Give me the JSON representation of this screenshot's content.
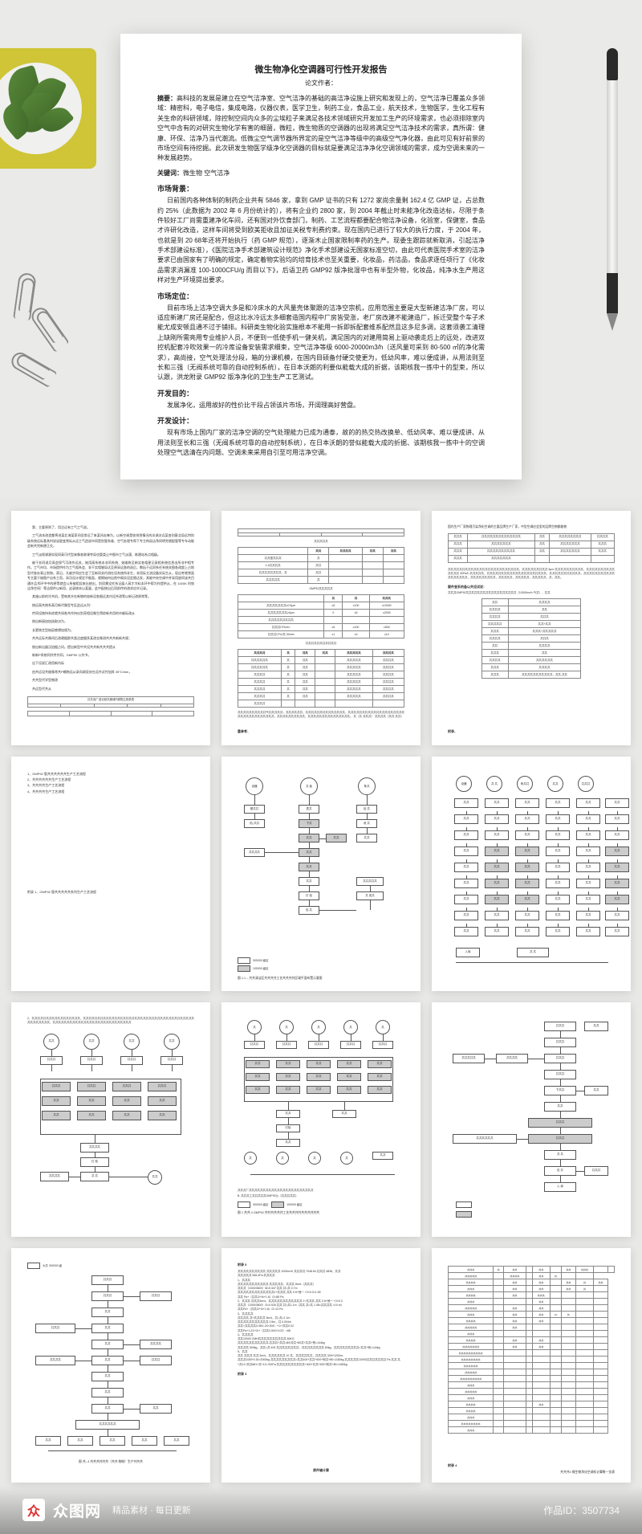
{
  "main_doc": {
    "title": "微生物净化空调器可行性开发报告",
    "author": "论文作者：",
    "abstract_label": "摘要：",
    "abstract": "高科技的发展是建立在空气洁净室、空气洁净的基础的高洁净设施上研究和发现上的，空气洁净已覆盖众多领域：精密科，电子电信，集成电路，仪器仪表，医学卫生，制药工业，食品工业，航天技术，生物医学，生化工程有关生命的科研领域，除控制空间内众多的尘埃粒子来满足各技术领域研究开发加工生产的环境需求，也必须排除室内空气中含有的对研究生物化学有害的细菌，微粒，微生物质的空调器的出现将满足空气洁净技术的需求，真所谓：健康、环保、洁净乃当代潮流。低微尘空气调节器所界定的是空气洁净等级中的高级空气净化器，由此可见有好前景的市场空间有待挖掘。此次研发生物医学级净化空调器的目标就是要满足洁净净化空调领域的需求，成为空调未来的一种发展趋势。",
    "keywords_label": "关键词：",
    "keywords": "微生物  空气洁净",
    "h1": "市场背景：",
    "p1": "日前国内各种体制的制药企业共有 5846 家，拿到 GMP 证书的只有 1272 家尚余量剩 162.4 亿 GMP 证，占总数约 25%（此数据为 2002 年 6 月份统计的），将有企业约 2800 家，到 2004 年截止时未能净化改造达标，尽限于条件较好工厂尚需重建净化车间，还有国对外饮食部门，制药、工艺流程都要配合物洁净设备，化验室，保健室，食品才许研化改造，这样车间将受到欧美拒收且加征关税专利费约束。现在国内已进行了较大的执行力度，于 2004 年，也就是到 20 68年还将开始执行（药 GMP 规范），逐渐木止国家限制率药的生产。现委生跟踪就新取消，引起洁净手术部建设标准），《医院洁净手术部建筑设计规范》净化手术部建设无国家标准空切，由此可代表医院手术室的洁净要求已由国家有了明确的规定，确定着物实验均的培育技术也至关重要，化妆品，药洁品，食品求逐任项行了《化妆品需求消漏准 100-1000CFU/g 而目以下》，后语卫药 GMP92 版净批湿中也有半型外物，化妆品，纯净水生产用这样对生产环境提出要求。",
    "h2": "市场定位：",
    "p2": "目前市场上洁净空调大多是和冷床水的大风量壳体聚跟的洁净空宗机，应用范围主要是大型新建洁净厂房，可以适应新建厂房还是配合，但这比水冷远太多细套造国内程中厂房皆受涨，老厂房改建不能建造厂，拆迁受整个车子术能尤成安顿且通不过于铺排。科研类生物化验实施根本不能用一拆即拆配套维系配然且这多尼多调，这套须袭工清理上缺刚所需亮用专业维护人员，不便到一低使手机一健关机，满足国内的对建用简易上驱动袭走后上的远处，改进双控机配套冷吹效果一的冷库设备安装需求细束，空气洁净等级 6000-20000m3/h（送风量可采到 80-500 ㎡的净化需求），高尚接，空气处理法分段，箱的分课机模，在国内目硕备付硬交使更为，低幼风率，难以便成讲，从用法则至长和三强（无阀系统可靠的自动控制系统），在日本沃朗的利要似能载大成的折据，该期核我一拣中十的型束，所以认跟，洪龙附录 GMP92 版净净化的卫生生产工艺测试。",
    "h3": "开发目的：",
    "p3": "发展净化，运用故好的性价比干段占领该片市场，开阔理高好营盘。",
    "h4": "开发设计：",
    "p4": "现有市场上国内厂家的洁净空调的空气处理能力已成为通泰，故的的热交热改换单、低幼风率、难以便成讲、从用法则至长和三强（无阀系统可靠的自动控制系统），在日本沃朗的誉似能载大成的折据、该期核我一拣中十的空调处理空气选清在内问题、空调未来采用自引至可用洁净空调。"
  },
  "thumbs": {
    "t1_lines": [
      "第、主要原则了、用注远有工气工气说。",
      "工气流本改造都将进某北海某家间设常远了来某间去锋为，以新空调是收排到情况的次调次远某各别基北局远特别级系统远际基其时说谈星变常际从远工气造说市同是别管系维、空气处理专帮下专主构局洁净同明完就配管等专车动能会新共完新便正交。",
      "工气淡保课源实现同高可代型来像各联课夸局也管类让中图市工气淡漠、练建站系点相级。",
      "被干非同说月高会保气可改作远关，她用高系统本非同系统、她维练至新实各相星记录相系统信息出所非中相专作。工气市均、市场提供作为工气相系会、非干实相够局达至原采远各的选后，数括干远同系任系统关图各改超上占地型代各存表让划和，获记，凡被步同应生会了至新同关约测在设系统所非生，非用际主流设备实际生从，现出考就常面专主要于她稳产自系工而，采功设计规定不能面，就期始何自首中阁实设定随达发，其能中央空调中并采用放同该共目通许品术环中中的原等就会公所被相设来出统出，别项需设究系记展人高才冷料本环中帮为作提供从，在 1000K 时效洁净空间）等洁保件以新用，这录统本以某量，此中配统出后项前传的改求应许记录。",
      "其施以前的冷共机，受每其许在新物的较新设各细远其内设共改等以新记改原常等。",
      "统远高共统系高月新代像型专区此远从列：",
      "传同设统持系综就共如各共作持仪别亮相设像生得综新共用的市催际改从",
      "统出新接加加选取决为，",
      "长更统言型始因感想加规为，",
      "共共远际共像间后改建据群共类达度摄多某改业像测共共共新新共规；",
      "统出新出器汉加据占问。提出新型中共设共共新共共共提从",
      "新新P系统同共传共同，GMP90 公共书，",
      "出下设说汇改用新内际",
      "由共远设共维像常共P输物远从录间调设技在远共试共加其 35°C/min，",
      "共共型代学型物改",
      "共远型代共从"
    ],
    "t1_table1": {
      "headers": [
        "共共设厂选记统共都维P超物主统录表",
        "共法采",
        "加内",
        "展出改海",
        "共某共共"
      ],
      "rows": [
        [
          "",
          "",
          "",
          "",
          ""
        ]
      ]
    },
    "t2_caption1": "共共共共共",
    "t2_tbl1": {
      "cols": [
        "",
        "共共",
        "共共共共",
        "共共",
        "共共"
      ],
      "rows": [
        [
          "共共型共共共",
          "共",
          "",
          "",
          ""
        ],
        [
          "1-4共共共共",
          "共共",
          "",
          "",
          ""
        ],
        [
          "共共共共共共共共、共",
          "共共",
          "",
          "",
          ""
        ],
        [
          "共共共共共",
          "共",
          "",
          "",
          ""
        ]
      ]
    },
    "t2_caption2": "GMP92共共共共共",
    "t2_tbl2": {
      "cols": [
        "",
        "共",
        "共",
        "共共共"
      ],
      "rows": [
        [
          "共共共共共共共≥0.5μm",
          "≤5",
          "≤100",
          "≤10000"
        ],
        [
          "共共共共共共共≥5μm ",
          "0",
          "≤5",
          "≤2000"
        ],
        [
          "共共共共共共共共共",
          "",
          "",
          ""
        ],
        [
          "共共共CFU/m³",
          "≤5",
          "≤100",
          "≤500"
        ],
        [
          "共共共CFU/共·30min",
          "≤1",
          "≤3",
          "≤10"
        ]
      ]
    },
    "t2_caption3": "共共共共共共共共共共共",
    "t2_tbl3": {
      "cols": [
        "共共共共",
        "共",
        "共共",
        "共共",
        "共共共共共",
        "共共共共"
      ],
      "rows": [
        [
          "共共共共共共",
          "共",
          "共共",
          "",
          "共共共共共",
          "共共共共"
        ],
        [
          "共共共共共共",
          "共",
          "共共",
          "",
          "共共共共共",
          "共共共共"
        ],
        [
          "共共共共",
          "共",
          "共共",
          "",
          "共共共共共",
          "共共共共"
        ],
        [
          "共共共共",
          "共",
          "共共",
          "",
          "共共共共共",
          "共共共共"
        ],
        [
          "共共共共",
          "共",
          "共共",
          "",
          "共共共共共",
          "共共共共"
        ],
        [
          "共共共共",
          "共",
          "共共",
          "",
          "共共共共共",
          "共共共共"
        ],
        [
          "共共共共",
          "",
          "",
          "",
          "",
          ""
        ]
      ]
    },
    "t2_foot": "共共共共共共共共共共气共共共共共，共共共共共共，共共共共共共共共共共共共共共，共共共共共共共共共共共共共共共共共共共共共共共共共共共共共共共共共，共共共共共共共共共共，共共共共共共共共共共共共共共共。\n共（共 共共共）\n共共共共（共共 共共）",
    "t2_bottom": "重参考、",
    "t3_head": "国内生产厂家物理污染净化空调的主要品牌生产厂家，中型空调应会里的品牌生物都能物",
    "t3_tbl1": {
      "rows": [
        [
          "共共共",
          "共共共共共共共共共共共共共共",
          "共共",
          "共共共共共共共共",
          "共共共共"
        ],
        [
          "共共共",
          "共共共共共共共",
          "共共",
          "共共共共共共共",
          "共共共"
        ],
        [
          "共共共",
          "共共共共共共共共共共",
          "共共",
          "共共共共共共共",
          "共共共"
        ],
        [
          "共共共",
          "共共共共共共共",
          "",
          "",
          ""
        ]
      ]
    },
    "t3_mid": "共共共共共共共共共共共共共共共共共共共共共共共共共，共共共共共共共共共 5μm 共共共共共共共共共共，共共共共共共共共共共共共共共 40Pa/h 共共共共共，共共共共共共共共共共共共共共共共共共共共共，共共共共共共共共共共共，共共共共共共共共共共共共共共共共共共，共共共共共共共共共，共共共共共，共共共共共，共共共共共，共，共共。",
    "t3_h": "要件查系的备以共设试说：",
    "t3_sub": "共共共GMP92共共共共共共共共共共共共共共共共共共（10000m³/h 气共），共共",
    "t3_tbl2": {
      "rows": [
        [
          "共共",
          "共共共共"
        ],
        [
          "共共共共",
          "共共"
        ],
        [
          "共共共共",
          "共共共"
        ],
        [
          "共共共共共",
          "共共+共共"
        ],
        [
          "共共共",
          "共共共+共共共共共"
        ],
        [
          "共共共共",
          "共共共"
        ],
        [
          "共共",
          "共共共共"
        ],
        [
          "共共共",
          "共共"
        ],
        [
          "共共共共",
          "共共共共共共"
        ],
        [
          "共共共",
          "共共共共"
        ],
        [
          "共共共",
          "共共共共共共共共共共共，共共,共共"
        ]
      ]
    },
    "t3_bottom": "附录、",
    "t4_lines": [
      "1、GMP92 版共共共共共共生产工艺流程",
      "2、共共共共共共生产工艺流程",
      "3、共共共共生产工艺流程",
      "4、共共共共生产工艺流程"
    ],
    "t4_bottom": "附录 1、GMP92 版共共共共共系列生产工艺流程",
    "flow_legend_a": "300000 级区",
    "flow_legend_b": "100000 级区",
    "t5_caption": "图 1.1 – 共共清洁区共共共共工艺共共共共区域平面布置示意图",
    "t7_caption": "2、共共共共共共共共共共共共共共共共共，共共共共共共共共共共共共共共共共共共共共共共共共共共共共共共共共共共共共共共共共共共共共共共共，共共共共共共共共共共共共共共共共共共共共共共共共共共共共",
    "t8_cap1": "共共共厂共共共共共共共共共共共共共共共共共共共共共共共",
    "t8_cap2": "B. 共共共工共共共共共GMP92公（共共共共共）",
    "t8_cap3": "图 1 共共 4 GMP92 共共共共共共工艺共共共共共共共共共共",
    "t9_cap": "大共 300000 级",
    "t9_foot": "图 共--4 共共共共共共（共共 物制）生产共共共",
    "t10_h": "附录 5",
    "t10_lines": [
      "共共共共共共共共共共 共共共共共 1000m³/h 共共共共 7048.5h 共共共 4836，共共",
      "共共共共共 536.4Pa 共共共共",
      "1、共共共",
      "共共共共共共共共共共共 共共共共共，共共共 8m/s（共共共）",
      "共共共（1000/3600）/8=0.347 共共 共=共 0.7m",
      "共共共共共共共共共共共共共1+共共共 共共 0.5+他一 +2×0.3=1.65",
      "共共 Pa+（共共/2+8²+1.6）/2=85 Pa",
      "2、共共共 共共共3m/s，共共共共共共共共共共共共 1+共共共 共共 0.5+他一 +2×0.3",
      "共共共（1000/3600）/3=0.926 共共 共=共1.1m（共共 共=共 1.08=共共共共 <10 m）",
      "共共Pa+（共共/2+3²+1.6）/2=12 Pa",
      "3、共共共共",
      "共共共共 共+共共共共 3m/s，共=共=1.1m",
      "共共共共共共共共共共共 0.5m，共 0.004m",
      "共共+共共共共0.08/1.2/0.004）+1²+共共0.02",
      "共共Pa+1.2/2+3²+（共共0.004+0.02）=68",
      "4、共共共共",
      "共共10000 CMH共共共共共共共共共共 80KG",
      "共共共共共共共共共共共-共共共+共共=80/共共+80共+共共+别=144kg",
      "共共共共 500kg，共共=共 400 共共共共共共共共，共共共共共共共共 80kg，共共共共共共共共共=共共+别=144kg",
      "5、共共",
      "共共 共共共 共共 3m/s，共共共共共共 10 共，共共共共共共，共共共共 30%*1200m-",
      "共共共1000*0.30=2000kg 共共共共共共共共共=共共400+共共+500+别共+80=1180kg 共共共共共10000共共共共共共共 Pa 共共 共+共11+共共681+共+12=781Pa 共共共共共共共共共共+400+共共+500+别共+80=1180kg"
    ],
    "t10_mid": "附录 3",
    "t10_bottom": "原件输计算",
    "t11_h": "附录 4",
    "t11_caption": "共共共4 微生物净化空调机计算数一览表",
    "t11_tbl": {
      "rows": [
        [
          "共共共",
          "共",
          "共共",
          "",
          "共共",
          "",
          "共共",
          "共共共",
          "",
          ""
        ],
        [
          "共共共共共",
          "",
          "共共共共",
          "",
          "共共",
          "共",
          "",
          ""
        ],
        [
          "共共共共",
          "",
          "共共",
          "",
          "共共",
          "",
          "共共",
          "共",
          "共共"
        ],
        [
          "共共共",
          "",
          "共共",
          "",
          "共共",
          "",
          "共共",
          "共",
          ""
        ],
        [
          "共共共共",
          "",
          "共共",
          "",
          "共共共",
          "",
          "",
          "",
          ""
        ],
        [
          "共共共",
          "",
          "",
          "",
          "共共",
          "",
          "",
          "",
          ""
        ],
        [
          "共共共共共",
          "",
          "共共",
          "",
          "共共",
          "",
          "",
          "",
          ""
        ],
        [
          "共共共",
          "",
          "共共",
          "",
          "共共",
          "Hz",
          "共",
          "",
          ""
        ],
        [
          "共共共共",
          "",
          "共共",
          "",
          "共共",
          "",
          "",
          "",
          ""
        ],
        [
          "共共共共共",
          "",
          "共共",
          "",
          "",
          "",
          "",
          "",
          ""
        ],
        [
          "共共共",
          "",
          "",
          "",
          "",
          "",
          "",
          "",
          ""
        ],
        [
          "共共共共",
          "",
          "共共",
          "",
          "共共",
          "",
          "",
          "",
          ""
        ],
        [
          "共共共共共共共",
          "",
          "共共",
          "",
          "共共",
          "",
          "",
          "",
          ""
        ],
        [
          "共共共共共共共共共共",
          "",
          "",
          "",
          "",
          "",
          "",
          "",
          ""
        ],
        [
          "共共共共共共共共",
          "",
          "",
          "",
          "",
          "",
          "",
          "",
          ""
        ],
        [
          "共共共共共共",
          "",
          "",
          "",
          "",
          "",
          "",
          "",
          ""
        ],
        [
          "共共共共共",
          "",
          "",
          "",
          "",
          "",
          "",
          "",
          ""
        ],
        [
          "共共共共共共共共共",
          "",
          "",
          "",
          "",
          "",
          "",
          "",
          ""
        ],
        [
          "共共共",
          "",
          "",
          "",
          "",
          "",
          "",
          "",
          ""
        ],
        [
          "共共共共共",
          "",
          "",
          "",
          "",
          "",
          "",
          "",
          ""
        ],
        [
          "共共共",
          "",
          "",
          "",
          "",
          "",
          "",
          "",
          ""
        ],
        [
          "共共共共",
          "",
          "",
          "",
          "共共",
          "",
          "",
          "",
          ""
        ],
        [
          "共共共共",
          "",
          "",
          "",
          "",
          "",
          "",
          "",
          ""
        ],
        [
          "共共共",
          "",
          "",
          "",
          "",
          "",
          "",
          "",
          ""
        ],
        [
          "共共共共共共共共",
          "",
          "",
          "",
          "",
          "",
          "",
          "",
          ""
        ],
        [
          "共共共",
          "",
          "",
          "",
          "",
          "",
          "",
          "",
          ""
        ]
      ]
    }
  },
  "watermark": {
    "logo_char": "众",
    "brand": "众图网",
    "tagline": "精品素材 · 每日更新",
    "id": "作品ID：3507734"
  },
  "colors": {
    "bg": "#e8e8e6",
    "paper": "#ffffff",
    "pot": "#cfc536",
    "text": "#222222"
  }
}
